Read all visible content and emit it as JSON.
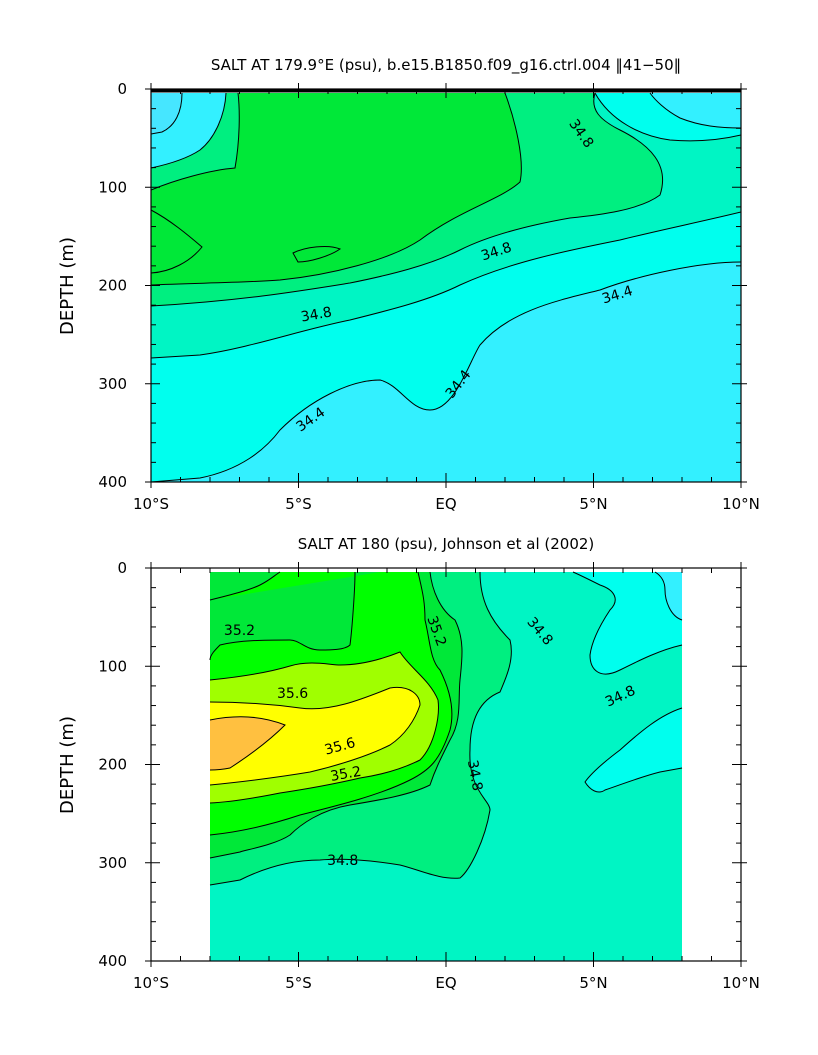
{
  "chart_data": [
    {
      "type": "heatmap",
      "title": "SALT AT 179.9°E (psu), b.e15.B1850.f09_g16.ctrl.004 ‖41−50‖",
      "xlabel": "",
      "ylabel": "DEPTH (m)",
      "xlim": [
        -10,
        10
      ],
      "ylim": [
        400,
        0
      ],
      "x_ticks": [
        -10,
        -5,
        0,
        5,
        10
      ],
      "x_tick_labels": [
        "10°S",
        "5°S",
        "EQ",
        "5°N",
        "10°N"
      ],
      "y_ticks": [
        0,
        100,
        200,
        300,
        400
      ],
      "y_tick_labels": [
        "0",
        "100",
        "200",
        "300",
        "400"
      ],
      "contour_levels_psu": [
        34.2,
        34.4,
        34.6,
        34.8,
        35.0
      ],
      "data_extent_x": [
        -10,
        10
      ],
      "fill_colors": {
        "34.0-34.2": "#46e6ff",
        "34.2-34.4": "#33f0ff",
        "34.4-34.6": "#00ffee",
        "34.6-34.8": "#00f5c4",
        "34.8-35.0": "#00ef80",
        "35.0-35.2": "#00e838"
      },
      "contour_labels": [
        {
          "text": "34.8",
          "x": 4.6,
          "y": 45,
          "angle": 55
        },
        {
          "text": "34.8",
          "x": 1.7,
          "y": 165,
          "angle": -18
        },
        {
          "text": "34.8",
          "x": -4.4,
          "y": 229,
          "angle": -10
        },
        {
          "text": "34.4",
          "x": 5.8,
          "y": 209,
          "angle": -17
        },
        {
          "text": "34.4",
          "x": 0.4,
          "y": 300,
          "angle": -52
        },
        {
          "text": "34.4",
          "x": -4.6,
          "y": 336,
          "angle": -35
        }
      ]
    },
    {
      "type": "heatmap",
      "title": "SALT AT 180 (psu), Johnson et al (2002)",
      "xlabel": "",
      "ylabel": "DEPTH (m)",
      "xlim": [
        -10,
        10
      ],
      "ylim": [
        400,
        0
      ],
      "x_ticks": [
        -10,
        -5,
        0,
        5,
        10
      ],
      "x_tick_labels": [
        "10°S",
        "5°S",
        "EQ",
        "5°N",
        "10°N"
      ],
      "y_ticks": [
        0,
        100,
        200,
        300,
        400
      ],
      "y_tick_labels": [
        "0",
        "100",
        "200",
        "300",
        "400"
      ],
      "contour_levels_psu": [
        34.4,
        34.6,
        34.8,
        35.0,
        35.2,
        35.4,
        35.6,
        35.8
      ],
      "data_extent_x": [
        -8,
        8
      ],
      "fill_colors": {
        "34.4-34.6": "#00ffee",
        "34.6-34.8": "#00f5c4",
        "34.8-35.0": "#00ef80",
        "35.0-35.2": "#00e838",
        "35.2-35.4": "#00ff00",
        "35.4-35.6": "#a0ff00",
        "35.6-35.8": "#ffff00",
        "35.8-36.0": "#ffc040"
      },
      "contour_labels": [
        {
          "text": "35.2",
          "x": -7.0,
          "y": 63,
          "angle": 0
        },
        {
          "text": "35.6",
          "x": -5.2,
          "y": 127,
          "angle": 0
        },
        {
          "text": "35.6",
          "x": -3.6,
          "y": 181,
          "angle": -15
        },
        {
          "text": "35.2",
          "x": -3.4,
          "y": 209,
          "angle": -10
        },
        {
          "text": "35.2",
          "x": -0.3,
          "y": 64,
          "angle": 70
        },
        {
          "text": "34.8",
          "x": 3.2,
          "y": 64,
          "angle": 50
        },
        {
          "text": "34.8",
          "x": 5.9,
          "y": 130,
          "angle": -25
        },
        {
          "text": "34.8",
          "x": 1.0,
          "y": 211,
          "angle": 80
        },
        {
          "text": "34.8",
          "x": -3.5,
          "y": 297,
          "angle": 0
        }
      ]
    }
  ]
}
